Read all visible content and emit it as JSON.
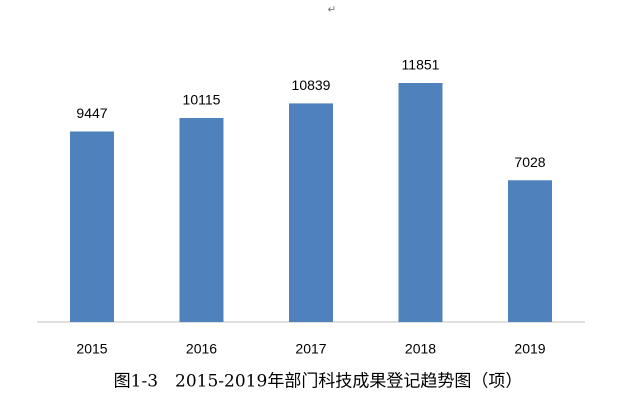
{
  "chart_data": {
    "type": "bar",
    "annotation": "↵",
    "title": "图1-3　2015-2019年部门科技成果登记趋势图（项）",
    "categories": [
      "2015",
      "2016",
      "2017",
      "2018",
      "2019"
    ],
    "values": [
      9447,
      10115,
      10839,
      11851,
      7028
    ],
    "color": "#4f81bd"
  }
}
